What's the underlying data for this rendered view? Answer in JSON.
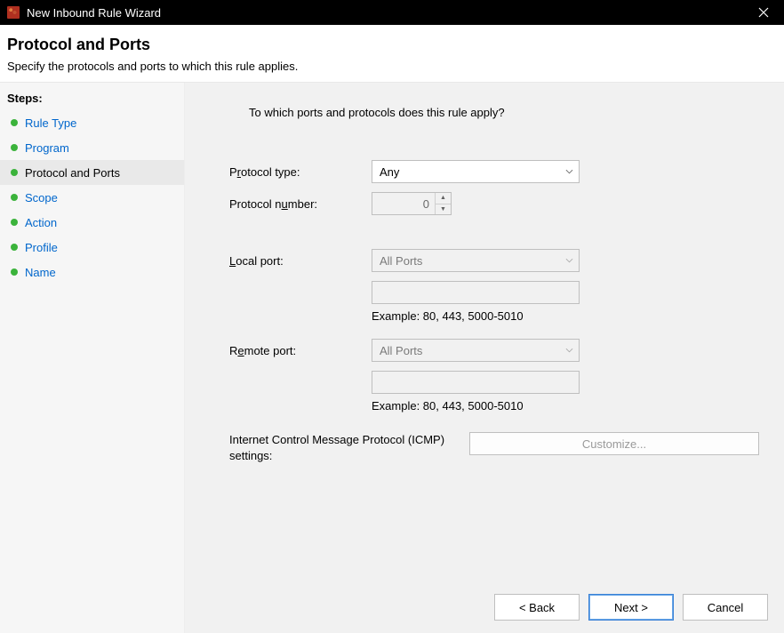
{
  "window": {
    "title": "New Inbound Rule Wizard"
  },
  "header": {
    "title": "Protocol and Ports",
    "subtitle": "Specify the protocols and ports to which this rule applies."
  },
  "sidebar": {
    "heading": "Steps:",
    "items": [
      {
        "label": "Rule Type",
        "current": false
      },
      {
        "label": "Program",
        "current": false
      },
      {
        "label": "Protocol and Ports",
        "current": true
      },
      {
        "label": "Scope",
        "current": false
      },
      {
        "label": "Action",
        "current": false
      },
      {
        "label": "Profile",
        "current": false
      },
      {
        "label": "Name",
        "current": false
      }
    ]
  },
  "content": {
    "prompt": "To which ports and protocols does this rule apply?",
    "protocol_type": {
      "label_pre": "P",
      "label_u": "r",
      "label_post": "otocol type:",
      "value": "Any"
    },
    "protocol_number": {
      "label_pre": "Protocol n",
      "label_u": "u",
      "label_post": "mber:",
      "value": "0"
    },
    "local_port": {
      "label_pre": "",
      "label_u": "L",
      "label_post": "ocal port:",
      "select_value": "All Ports",
      "input_value": "",
      "example": "Example: 80, 443, 5000-5010"
    },
    "remote_port": {
      "label_pre": "R",
      "label_u": "e",
      "label_post": "mote port:",
      "select_value": "All Ports",
      "input_value": "",
      "example": "Example: 80, 443, 5000-5010"
    },
    "icmp": {
      "label": "Internet Control Message Protocol (ICMP) settings:",
      "button_pre": "C",
      "button_u": "u",
      "button_post": "stomize..."
    }
  },
  "footer": {
    "back_pre": "< ",
    "back_u": "B",
    "back_post": "ack",
    "next_pre": "",
    "next_u": "N",
    "next_post": "ext >",
    "cancel": "Cancel"
  },
  "colors": {
    "link": "#0066cc",
    "step_dot": "#3bb33b",
    "titlebar_bg": "#000000",
    "content_bg": "#f1f1f1",
    "primary_border": "#3b82d6"
  }
}
